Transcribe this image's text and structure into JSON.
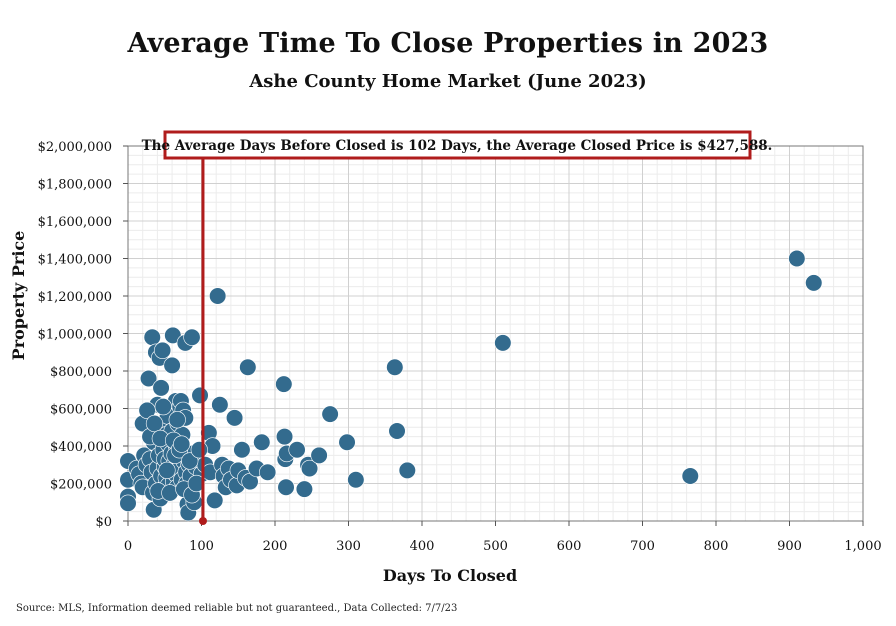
{
  "chart_data": {
    "type": "scatter",
    "title": "Average Time To Close Properties in 2023",
    "subtitle": "Ashe County Home Market (June 2023)",
    "xlabel": "Days To Closed",
    "ylabel": "Property Price",
    "xlim": [
      0,
      1000
    ],
    "ylim": [
      0,
      2000000
    ],
    "x_ticks": [
      "0",
      "100",
      "200",
      "300",
      "400",
      "500",
      "600",
      "700",
      "800",
      "900",
      "1,000"
    ],
    "x_tick_values": [
      0,
      100,
      200,
      300,
      400,
      500,
      600,
      700,
      800,
      900,
      1000
    ],
    "y_ticks": [
      "$0",
      "$200,000",
      "$400,000",
      "$600,000",
      "$800,000",
      "$1,000,000",
      "$1,200,000",
      "$1,400,000",
      "$1,600,000",
      "$1,800,000",
      "$2,000,000"
    ],
    "y_tick_values": [
      0,
      200000,
      400000,
      600000,
      800000,
      1000000,
      1200000,
      1400000,
      1600000,
      1800000,
      2000000
    ],
    "grid": true,
    "marker_color": "#336b8e",
    "reference_line": {
      "x": 102,
      "color": "#b01c1c"
    },
    "annotation": "The Average Days Before Closed is 102 Days, the Average Closed Price is $427,588.",
    "points": [
      [
        0,
        320000
      ],
      [
        0,
        220000
      ],
      [
        0,
        130000
      ],
      [
        0,
        95000
      ],
      [
        12,
        280000
      ],
      [
        15,
        250000
      ],
      [
        18,
        200000
      ],
      [
        20,
        180000
      ],
      [
        22,
        350000
      ],
      [
        25,
        300000
      ],
      [
        28,
        760000
      ],
      [
        30,
        330000
      ],
      [
        32,
        260000
      ],
      [
        33,
        980000
      ],
      [
        34,
        150000
      ],
      [
        35,
        60000
      ],
      [
        35,
        420000
      ],
      [
        38,
        900000
      ],
      [
        38,
        200000
      ],
      [
        40,
        620000
      ],
      [
        40,
        280000
      ],
      [
        42,
        350000
      ],
      [
        43,
        870000
      ],
      [
        44,
        120000
      ],
      [
        45,
        710000
      ],
      [
        45,
        240000
      ],
      [
        46,
        500000
      ],
      [
        47,
        910000
      ],
      [
        48,
        170000
      ],
      [
        48,
        380000
      ],
      [
        50,
        290000
      ],
      [
        50,
        330000
      ],
      [
        52,
        460000
      ],
      [
        52,
        230000
      ],
      [
        54,
        560000
      ],
      [
        55,
        410000
      ],
      [
        55,
        190000
      ],
      [
        56,
        320000
      ],
      [
        58,
        270000
      ],
      [
        59,
        360000
      ],
      [
        60,
        830000
      ],
      [
        60,
        480000
      ],
      [
        61,
        990000
      ],
      [
        62,
        210000
      ],
      [
        63,
        300000
      ],
      [
        65,
        640000
      ],
      [
        65,
        250000
      ],
      [
        66,
        400000
      ],
      [
        67,
        180000
      ],
      [
        68,
        520000
      ],
      [
        69,
        340000
      ],
      [
        70,
        280000
      ],
      [
        71,
        610000
      ],
      [
        72,
        640000
      ],
      [
        73,
        220000
      ],
      [
        74,
        460000
      ],
      [
        75,
        590000
      ],
      [
        76,
        320000
      ],
      [
        78,
        950000
      ],
      [
        78,
        550000
      ],
      [
        79,
        260000
      ],
      [
        80,
        200000
      ],
      [
        81,
        90000
      ],
      [
        82,
        45000
      ],
      [
        83,
        300000
      ],
      [
        85,
        240000
      ],
      [
        87,
        980000
      ],
      [
        88,
        360000
      ],
      [
        90,
        100000
      ],
      [
        92,
        290000
      ],
      [
        95,
        330000
      ],
      [
        98,
        670000
      ],
      [
        100,
        250000
      ],
      [
        105,
        300000
      ],
      [
        110,
        470000
      ],
      [
        112,
        260000
      ],
      [
        115,
        400000
      ],
      [
        118,
        110000
      ],
      [
        122,
        1200000
      ],
      [
        125,
        620000
      ],
      [
        128,
        300000
      ],
      [
        130,
        240000
      ],
      [
        133,
        180000
      ],
      [
        137,
        280000
      ],
      [
        140,
        220000
      ],
      [
        145,
        550000
      ],
      [
        148,
        190000
      ],
      [
        150,
        270000
      ],
      [
        155,
        380000
      ],
      [
        160,
        230000
      ],
      [
        163,
        820000
      ],
      [
        166,
        210000
      ],
      [
        175,
        280000
      ],
      [
        182,
        420000
      ],
      [
        190,
        260000
      ],
      [
        212,
        730000
      ],
      [
        213,
        450000
      ],
      [
        214,
        330000
      ],
      [
        215,
        180000
      ],
      [
        216,
        360000
      ],
      [
        230,
        380000
      ],
      [
        240,
        170000
      ],
      [
        245,
        300000
      ],
      [
        247,
        280000
      ],
      [
        260,
        350000
      ],
      [
        275,
        570000
      ],
      [
        298,
        420000
      ],
      [
        310,
        220000
      ],
      [
        363,
        820000
      ],
      [
        366,
        480000
      ],
      [
        380,
        270000
      ],
      [
        510,
        950000
      ],
      [
        765,
        240000
      ],
      [
        910,
        1400000
      ],
      [
        933,
        1270000
      ],
      [
        20,
        520000
      ],
      [
        26,
        590000
      ],
      [
        30,
        450000
      ],
      [
        36,
        520000
      ],
      [
        41,
        160000
      ],
      [
        44,
        440000
      ],
      [
        48,
        610000
      ],
      [
        53,
        270000
      ],
      [
        57,
        150000
      ],
      [
        62,
        430000
      ],
      [
        64,
        350000
      ],
      [
        67,
        540000
      ],
      [
        70,
        380000
      ],
      [
        73,
        410000
      ],
      [
        76,
        170000
      ],
      [
        84,
        320000
      ],
      [
        87,
        140000
      ],
      [
        93,
        200000
      ],
      [
        97,
        380000
      ]
    ]
  }
}
